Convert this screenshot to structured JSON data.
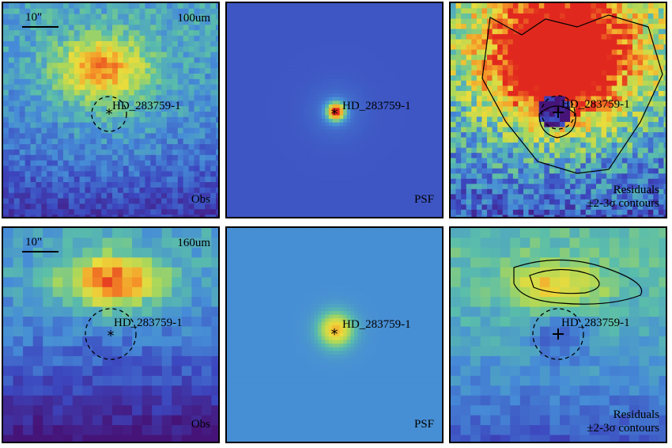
{
  "source_label": "HD_283759-1",
  "scale_label": "10\"",
  "rows": [
    {
      "band": "100um",
      "panels": [
        {
          "kind": "obs",
          "label": "Obs"
        },
        {
          "kind": "psf",
          "label": "PSF"
        },
        {
          "kind": "res",
          "label_line1": "Residuals",
          "label_line2": "±2-3σ contours"
        }
      ]
    },
    {
      "band": "160um",
      "panels": [
        {
          "kind": "obs",
          "label": "Obs"
        },
        {
          "kind": "psf",
          "label": "PSF"
        },
        {
          "kind": "res",
          "label_line1": "Residuals",
          "label_line2": "±2-3σ contours"
        }
      ]
    }
  ],
  "colors": {
    "frame": "#000000",
    "psf_background_100um": "#3b63c4",
    "psf_background_160um": "#4f8fd0",
    "residual_saturated": "#e8251f"
  }
}
